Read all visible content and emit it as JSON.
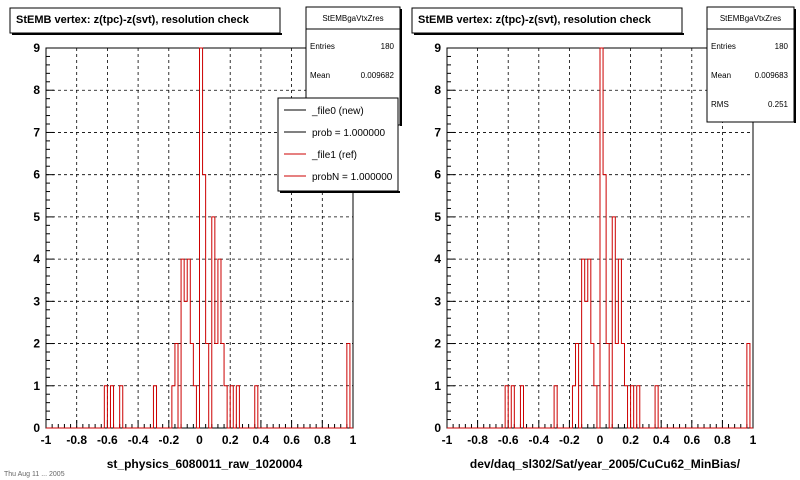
{
  "footer_text": "Thu Aug 11 ... 2005",
  "legend": {
    "entries": [
      {
        "label": "_file0 (new)",
        "color": "#000000"
      },
      {
        "label": "prob = 1.000000",
        "color": "#000000"
      },
      {
        "label": "_file1 (ref)",
        "color": "#cc0000"
      },
      {
        "label": "probN = 1.000000",
        "color": "#cc0000"
      }
    ]
  },
  "panels": [
    {
      "title": "StEMB  vertex: z(tpc)-z(svt), resolution check",
      "xlabel": "st_physics_6080011_raw_1020004",
      "stats": {
        "name": "StEMBgaVtxZres",
        "rows": [
          {
            "label": "Entries",
            "value": "180"
          },
          {
            "label": "Mean",
            "value": "0.009682"
          }
        ]
      },
      "show_legend": true
    },
    {
      "title": "StEMB  vertex: z(tpc)-z(svt), resolution check",
      "xlabel": "dev/daq_sl302/Sat/year_2005/CuCu62_MinBias/",
      "stats": {
        "name": "StEMBgaVtxZres",
        "rows": [
          {
            "label": "Entries",
            "value": "180"
          },
          {
            "label": "Mean",
            "value": "0.009683"
          },
          {
            "label": "RMS",
            "value": "0.251"
          }
        ]
      },
      "show_legend": false
    }
  ],
  "chart_data": {
    "type": "histogram",
    "xlim": [
      -1,
      1
    ],
    "ylim": [
      0,
      9
    ],
    "x_ticks": [
      "-1",
      "-0.8",
      "-0.6",
      "-0.4",
      "-0.2",
      "0",
      "0.2",
      "0.4",
      "0.6",
      "0.8",
      "1"
    ],
    "y_ticks": [
      "0",
      "1",
      "2",
      "3",
      "4",
      "5",
      "6",
      "7",
      "8",
      "9"
    ],
    "grid": true,
    "line_color": "#cc0000",
    "bins": 100,
    "counts": [
      0,
      0,
      0,
      0,
      0,
      0,
      0,
      0,
      0,
      0,
      0,
      0,
      0,
      0,
      0,
      0,
      0,
      0,
      0,
      1,
      0,
      1,
      0,
      0,
      1,
      0,
      0,
      0,
      0,
      0,
      0,
      0,
      0,
      0,
      0,
      1,
      0,
      0,
      0,
      0,
      0,
      1,
      2,
      0,
      4,
      3,
      4,
      2,
      1,
      0,
      9,
      6,
      2,
      0,
      5,
      2,
      4,
      2,
      1,
      0,
      1,
      0,
      1,
      0,
      0,
      0,
      0,
      0,
      1,
      0,
      0,
      0,
      0,
      0,
      0,
      0,
      0,
      0,
      0,
      0,
      0,
      0,
      0,
      0,
      0,
      0,
      0,
      0,
      0,
      0,
      0,
      0,
      0,
      0,
      0,
      0,
      0,
      0,
      2,
      0
    ]
  }
}
